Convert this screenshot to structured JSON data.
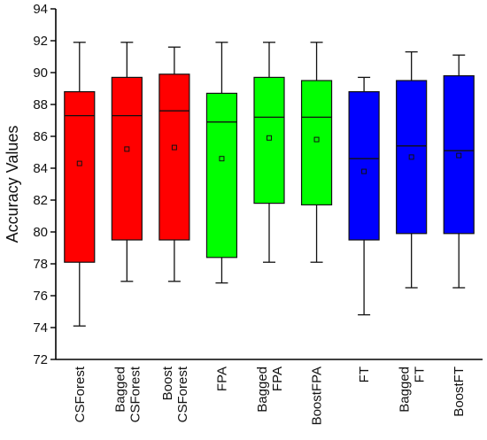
{
  "chart_data": {
    "type": "box",
    "title": "",
    "xlabel": "",
    "ylabel": "Accuracy Values",
    "ylim": [
      72,
      94
    ],
    "yticks": [
      72,
      74,
      76,
      78,
      80,
      82,
      84,
      86,
      88,
      90,
      92,
      94
    ],
    "categories": [
      "CSForest",
      "Bagged\nCSForest",
      "Boost\nCSForest",
      "FPA",
      "Bagged\nFPA",
      "BoostFPA",
      "FT",
      "Bagged\nFT",
      "BoostFT"
    ],
    "boxes": [
      {
        "category": "CSForest",
        "min": 74.1,
        "q1": 78.1,
        "median": 87.3,
        "q3": 88.8,
        "max": 91.9,
        "mean": 84.3,
        "color": "#ff0000"
      },
      {
        "category": "Bagged CSForest",
        "min": 76.9,
        "q1": 79.5,
        "median": 87.3,
        "q3": 89.7,
        "max": 91.9,
        "mean": 85.2,
        "color": "#ff0000"
      },
      {
        "category": "Boost CSForest",
        "min": 76.9,
        "q1": 79.5,
        "median": 87.6,
        "q3": 89.9,
        "max": 91.6,
        "mean": 85.3,
        "color": "#ff0000"
      },
      {
        "category": "FPA",
        "min": 76.8,
        "q1": 78.4,
        "median": 86.9,
        "q3": 88.7,
        "max": 91.9,
        "mean": 84.6,
        "color": "#00ff00"
      },
      {
        "category": "Bagged FPA",
        "min": 78.1,
        "q1": 81.8,
        "median": 87.2,
        "q3": 89.7,
        "max": 91.9,
        "mean": 85.9,
        "color": "#00ff00"
      },
      {
        "category": "BoostFPA",
        "min": 78.1,
        "q1": 81.7,
        "median": 87.2,
        "q3": 89.5,
        "max": 91.9,
        "mean": 85.8,
        "color": "#00ff00"
      },
      {
        "category": "FT",
        "min": 74.8,
        "q1": 79.5,
        "median": 84.6,
        "q3": 88.8,
        "max": 89.7,
        "mean": 83.8,
        "color": "#0000ff"
      },
      {
        "category": "Bagged FT",
        "min": 76.5,
        "q1": 79.9,
        "median": 85.4,
        "q3": 89.5,
        "max": 91.3,
        "mean": 84.7,
        "color": "#0000ff"
      },
      {
        "category": "BoostFT",
        "min": 76.5,
        "q1": 79.9,
        "median": 85.1,
        "q3": 89.8,
        "max": 91.1,
        "mean": 84.8,
        "color": "#0000ff"
      }
    ]
  }
}
